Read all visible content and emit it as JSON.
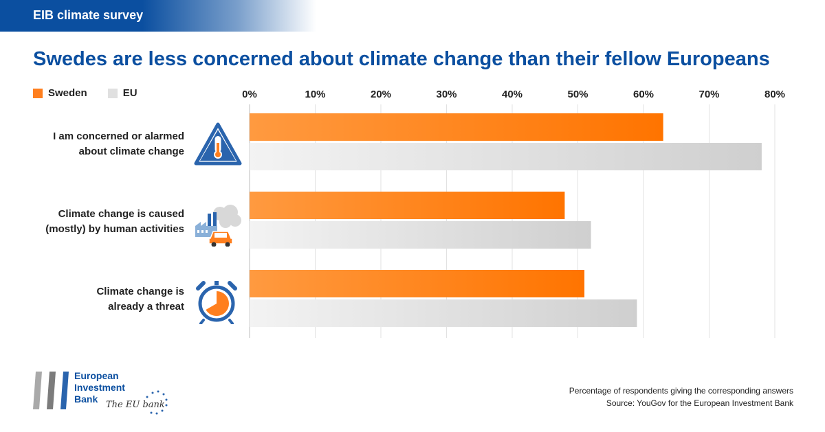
{
  "header": {
    "banner_label": "EIB climate survey",
    "title": "Swedes are less concerned about climate change than their fellow Europeans"
  },
  "legend": [
    {
      "label": "Sweden",
      "color": "#ff7f1e"
    },
    {
      "label": "EU",
      "color": "#e0e0e0"
    }
  ],
  "rows": [
    {
      "label_line1": "I am concerned or alarmed",
      "label_line2": "about climate change",
      "icon": "thermometer-warning-icon"
    },
    {
      "label_line1": "Climate change is caused",
      "label_line2": "(mostly) by human activities",
      "icon": "factory-car-pollution-icon"
    },
    {
      "label_line1": "Climate change is",
      "label_line2": "already a threat",
      "icon": "alarm-clock-icon"
    }
  ],
  "chart_data": {
    "type": "bar",
    "orientation": "horizontal",
    "categories": [
      "I am concerned or alarmed about climate change",
      "Climate change is caused (mostly) by human activities",
      "Climate change is already a threat"
    ],
    "series": [
      {
        "name": "Sweden",
        "values": [
          63,
          48,
          51
        ],
        "color": "#ff7f1e"
      },
      {
        "name": "EU",
        "values": [
          78,
          52,
          59
        ],
        "color": "#dcdcdc"
      }
    ],
    "xlim": [
      0,
      80
    ],
    "ticks": [
      "0%",
      "10%",
      "20%",
      "30%",
      "40%",
      "50%",
      "60%",
      "70%",
      "80%"
    ],
    "tick_values": [
      0,
      10,
      20,
      30,
      40,
      50,
      60,
      70,
      80
    ],
    "grid": true,
    "axis_position": "top",
    "legend_position": "top-left"
  },
  "footer": {
    "logo_line1": "European",
    "logo_line2": "Investment",
    "logo_line3": "Bank",
    "tagline": "The EU bank",
    "note": "Percentage of respondents giving the corresponding answers",
    "source": "Source: YouGov for the European Investment Bank"
  }
}
